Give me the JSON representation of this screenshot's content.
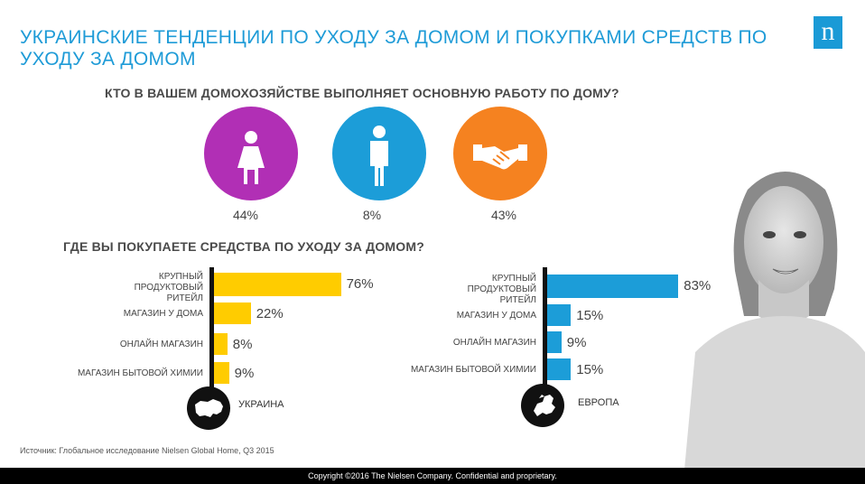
{
  "title": "УКРАИНСКИЕ ТЕНДЕНЦИИ ПО УХОДУ ЗА ДОМОМ И ПОКУПКАМИ СРЕДСТВ ПО УХОДУ ЗА ДОМОМ",
  "logo_letter": "n",
  "question1": "КТО В ВАШЕМ ДОМОХОЗЯЙСТВЕ ВЫПОЛНЯЕТ ОСНОВНУЮ РАБОТУ ПО ДОМУ?",
  "who": [
    {
      "icon": "woman-icon",
      "color": "#b12fb5",
      "label": "44%"
    },
    {
      "icon": "man-icon",
      "color": "#1c9dd8",
      "label": "8%"
    },
    {
      "icon": "handshake-icon",
      "color": "#f58220",
      "label": "43%"
    }
  ],
  "question2": "ГДЕ ВЫ ПОКУПАЕТЕ СРЕДСТВА ПО УХОДУ ЗА ДОМОМ?",
  "chart_data": [
    {
      "type": "bar",
      "orientation": "horizontal",
      "region": "УКРАИНА",
      "color": "#ffcc00",
      "categories": [
        "КРУПНЫЙ ПРОДУКТОВЫЙ РИТЕЙЛ",
        "МАГАЗИН У ДОМА",
        "ОНЛАЙН МАГАЗИН",
        "МАГАЗИН БЫТОВОЙ ХИМИИ"
      ],
      "values": [
        76,
        22,
        8,
        9
      ],
      "labels": [
        "76%",
        "22%",
        "8%",
        "9%"
      ]
    },
    {
      "type": "bar",
      "orientation": "horizontal",
      "region": "ЕВРОПА",
      "color": "#1c9dd8",
      "categories": [
        "КРУПНЫЙ ПРОДУКТОВЫЙ РИТЕЙЛ",
        "МАГАЗИН У ДОМА",
        "ОНЛАЙН МАГАЗИН",
        "МАГАЗИН БЫТОВОЙ ХИМИИ"
      ],
      "values": [
        83,
        15,
        9,
        15
      ],
      "labels": [
        "83%",
        "15%",
        "9%",
        "15%"
      ]
    }
  ],
  "source": "Источник: Глобальное исследование Nielsen Global Home, Q3 2015",
  "footer": "Copyright ©2016 The Nielsen Company. Confidential and proprietary."
}
